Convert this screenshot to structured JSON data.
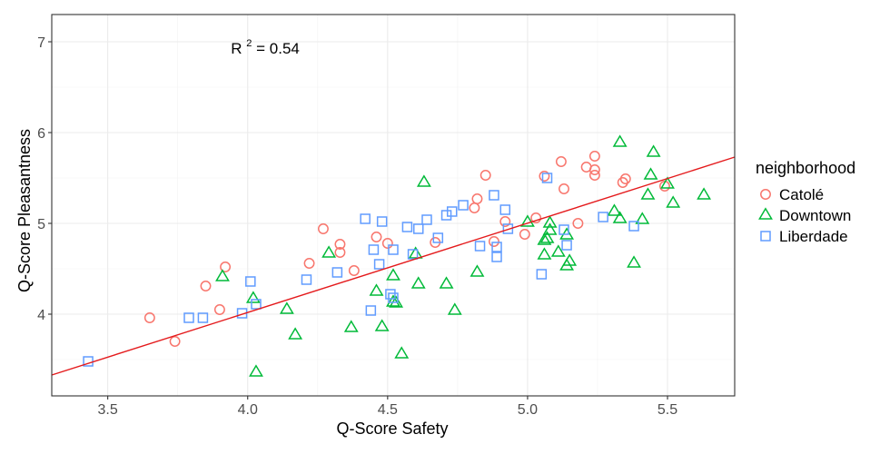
{
  "chart_data": {
    "type": "scatter",
    "title": "",
    "xlabel": "Q-Score Safety",
    "ylabel": "Q-Score Pleasantness",
    "xlim": [
      3.3,
      5.74
    ],
    "ylim": [
      3.1,
      7.3
    ],
    "xticks": [
      3.5,
      4.0,
      4.5,
      5.0,
      5.5
    ],
    "xtick_labels": [
      "3.5",
      "4.0",
      "4.5",
      "5.0",
      "5.5"
    ],
    "yticks": [
      4,
      5,
      6,
      7
    ],
    "ytick_labels": [
      "4",
      "5",
      "6",
      "7"
    ],
    "grid": true,
    "legend": {
      "title": "neighborhood",
      "position": "right"
    },
    "annotation": {
      "base": "R",
      "sup": "2",
      "rest": " = 0.54",
      "x": 3.94,
      "y": 6.93
    },
    "regression": {
      "x": [
        3.3,
        5.74
      ],
      "y": [
        3.33,
        5.73
      ],
      "color": "#e41a1c"
    },
    "series": [
      {
        "name": "Catolé",
        "marker": "circle",
        "color": "#f8766d",
        "points": [
          [
            3.65,
            3.96
          ],
          [
            3.74,
            3.7
          ],
          [
            3.85,
            4.31
          ],
          [
            3.9,
            4.05
          ],
          [
            3.92,
            4.52
          ],
          [
            4.22,
            4.56
          ],
          [
            4.27,
            4.94
          ],
          [
            4.33,
            4.77
          ],
          [
            4.33,
            4.68
          ],
          [
            4.38,
            4.48
          ],
          [
            4.46,
            4.85
          ],
          [
            4.5,
            4.78
          ],
          [
            4.67,
            4.79
          ],
          [
            4.81,
            5.17
          ],
          [
            4.82,
            5.27
          ],
          [
            4.85,
            5.53
          ],
          [
            4.88,
            4.8
          ],
          [
            4.92,
            5.02
          ],
          [
            4.99,
            4.88
          ],
          [
            5.03,
            5.06
          ],
          [
            5.06,
            5.52
          ],
          [
            5.12,
            5.68
          ],
          [
            5.13,
            5.38
          ],
          [
            5.18,
            5.0
          ],
          [
            5.21,
            5.62
          ],
          [
            5.24,
            5.74
          ],
          [
            5.24,
            5.59
          ],
          [
            5.24,
            5.53
          ],
          [
            5.34,
            5.45
          ],
          [
            5.35,
            5.49
          ],
          [
            5.49,
            5.41
          ]
        ]
      },
      {
        "name": "Downtown",
        "marker": "triangle",
        "color": "#00ba38",
        "points": [
          [
            3.91,
            4.41
          ],
          [
            4.02,
            4.17
          ],
          [
            4.03,
            3.36
          ],
          [
            4.14,
            4.05
          ],
          [
            4.17,
            3.77
          ],
          [
            4.29,
            4.67
          ],
          [
            4.37,
            3.85
          ],
          [
            4.46,
            4.25
          ],
          [
            4.48,
            3.86
          ],
          [
            4.52,
            4.42
          ],
          [
            4.52,
            4.13
          ],
          [
            4.53,
            4.12
          ],
          [
            4.55,
            3.56
          ],
          [
            4.6,
            4.66
          ],
          [
            4.61,
            4.33
          ],
          [
            4.63,
            5.45
          ],
          [
            4.71,
            4.33
          ],
          [
            4.74,
            4.04
          ],
          [
            4.82,
            4.46
          ],
          [
            5.0,
            5.01
          ],
          [
            5.06,
            4.81
          ],
          [
            5.06,
            4.65
          ],
          [
            5.07,
            4.83
          ],
          [
            5.08,
            5.0
          ],
          [
            5.08,
            4.92
          ],
          [
            5.11,
            4.68
          ],
          [
            5.14,
            4.87
          ],
          [
            5.14,
            4.53
          ],
          [
            5.15,
            4.58
          ],
          [
            5.31,
            5.13
          ],
          [
            5.33,
            5.89
          ],
          [
            5.33,
            5.05
          ],
          [
            5.38,
            4.56
          ],
          [
            5.41,
            5.04
          ],
          [
            5.43,
            5.31
          ],
          [
            5.44,
            5.53
          ],
          [
            5.45,
            5.78
          ],
          [
            5.5,
            5.43
          ],
          [
            5.52,
            5.22
          ],
          [
            5.63,
            5.31
          ]
        ]
      },
      {
        "name": "Liberdade",
        "marker": "square",
        "color": "#619cff",
        "points": [
          [
            3.43,
            3.48
          ],
          [
            3.79,
            3.96
          ],
          [
            3.84,
            3.96
          ],
          [
            3.98,
            4.01
          ],
          [
            4.01,
            4.36
          ],
          [
            4.03,
            4.11
          ],
          [
            4.21,
            4.38
          ],
          [
            4.32,
            4.46
          ],
          [
            4.42,
            5.05
          ],
          [
            4.44,
            4.04
          ],
          [
            4.45,
            4.71
          ],
          [
            4.47,
            4.55
          ],
          [
            4.48,
            5.02
          ],
          [
            4.51,
            4.22
          ],
          [
            4.52,
            4.18
          ],
          [
            4.52,
            4.71
          ],
          [
            4.57,
            4.96
          ],
          [
            4.59,
            4.66
          ],
          [
            4.61,
            4.94
          ],
          [
            4.64,
            5.04
          ],
          [
            4.68,
            4.84
          ],
          [
            4.71,
            5.09
          ],
          [
            4.73,
            5.13
          ],
          [
            4.77,
            5.2
          ],
          [
            4.83,
            4.75
          ],
          [
            4.88,
            5.31
          ],
          [
            4.89,
            4.63
          ],
          [
            4.89,
            4.74
          ],
          [
            4.92,
            5.15
          ],
          [
            4.93,
            4.94
          ],
          [
            5.05,
            4.44
          ],
          [
            5.07,
            5.5
          ],
          [
            5.13,
            4.93
          ],
          [
            5.14,
            4.76
          ],
          [
            5.27,
            5.07
          ],
          [
            5.38,
            4.97
          ]
        ]
      }
    ]
  }
}
